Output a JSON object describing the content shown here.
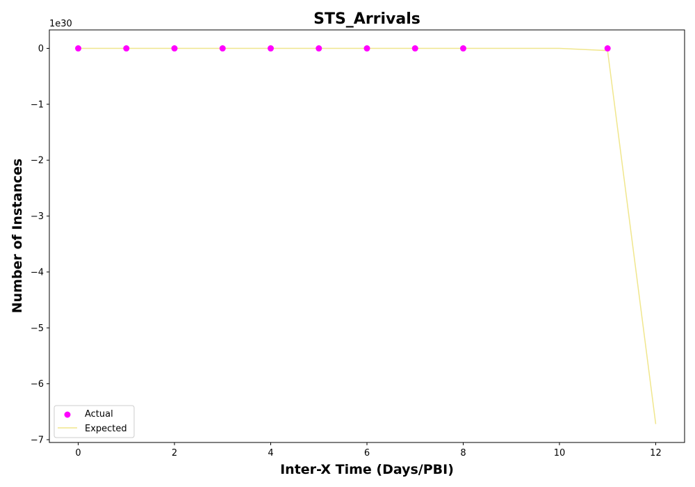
{
  "chart_data": {
    "type": "scatter",
    "title": "STS_Arrivals",
    "xlabel": "Inter-X Time (Days/PBI)",
    "ylabel": "Number of Instances",
    "y_offset_label": "1e30",
    "xlim": [
      -0.6,
      12.6
    ],
    "ylim": [
      -7.05,
      0.33
    ],
    "x_ticks": [
      0,
      2,
      4,
      6,
      8,
      10,
      12
    ],
    "y_ticks": [
      0,
      -1,
      -2,
      -3,
      -4,
      -5,
      -6,
      -7
    ],
    "x_tick_labels": [
      "0",
      "2",
      "4",
      "6",
      "8",
      "10",
      "12"
    ],
    "y_tick_labels": [
      "0",
      "−1",
      "−2",
      "−3",
      "−4",
      "−5",
      "−6",
      "−7"
    ],
    "legend_position": "lower-left",
    "series": [
      {
        "name": "Actual",
        "kind": "scatter",
        "color": "#ff00ff",
        "x": [
          0,
          1,
          2,
          3,
          4,
          5,
          6,
          7,
          8,
          11
        ],
        "y": [
          0,
          0,
          0,
          0,
          0,
          0,
          0,
          0,
          0,
          0
        ]
      },
      {
        "name": "Expected",
        "kind": "line",
        "color": "#f0e68c",
        "x": [
          0,
          1,
          2,
          3,
          4,
          5,
          6,
          7,
          8,
          9,
          10,
          11,
          12
        ],
        "y": [
          0,
          0,
          0,
          0,
          0,
          0,
          0,
          0,
          0,
          0,
          0,
          -0.04,
          -6.72
        ]
      }
    ]
  }
}
